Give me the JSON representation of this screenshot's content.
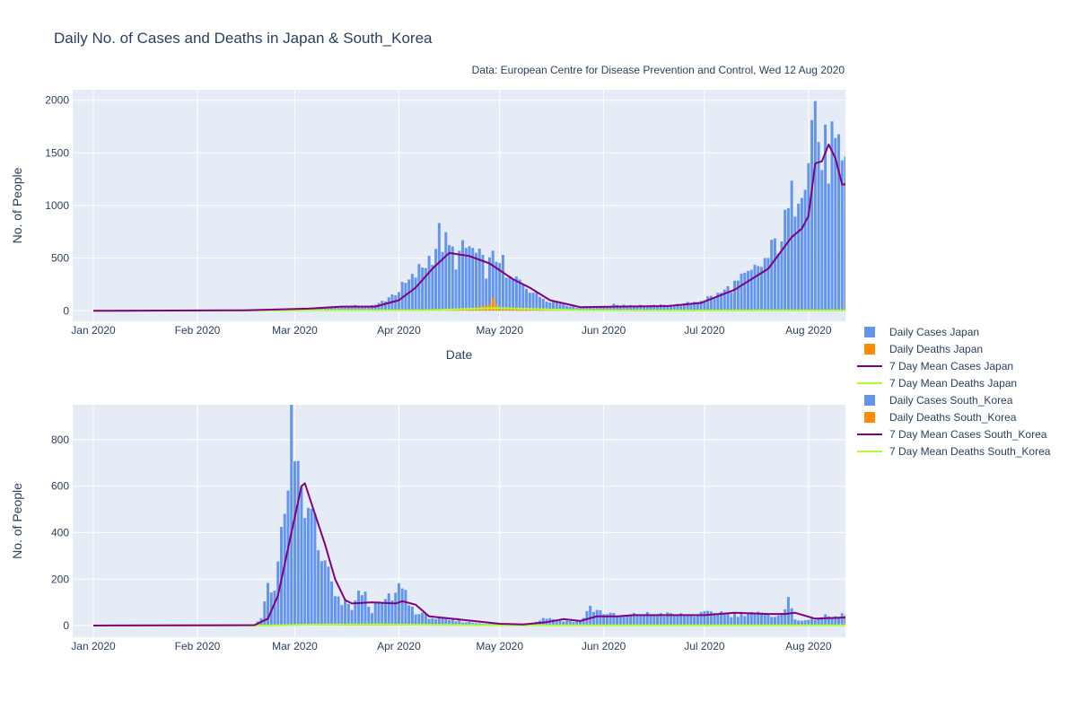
{
  "title": "Daily No. of Cases and Deaths in Japan & South_Korea",
  "source_note": "Data: European Centre for Disease Prevention and Control, Wed 12 Aug 2020",
  "colors": {
    "cases_bar": "#6495ED",
    "deaths_bar": "#FF8C00",
    "mean_cases_line": "#800080",
    "mean_deaths_line": "#ADFF2F",
    "plot_bg": "#E5ECF6",
    "grid": "#FFFFFF"
  },
  "legend": [
    {
      "label": "Daily Cases Japan",
      "kind": "bar",
      "color_key": "cases_bar"
    },
    {
      "label": "Daily Deaths Japan",
      "kind": "bar",
      "color_key": "deaths_bar"
    },
    {
      "label": "7 Day Mean Cases Japan",
      "kind": "line",
      "color_key": "mean_cases_line"
    },
    {
      "label": "7 Day Mean Deaths Japan",
      "kind": "line",
      "color_key": "mean_deaths_line"
    },
    {
      "label": "Daily Cases South_Korea",
      "kind": "bar",
      "color_key": "cases_bar"
    },
    {
      "label": "Daily Deaths South_Korea",
      "kind": "bar",
      "color_key": "deaths_bar"
    },
    {
      "label": "7 Day Mean Cases South_Korea",
      "kind": "line",
      "color_key": "mean_cases_line"
    },
    {
      "label": "7 Day Mean Deaths South_Korea",
      "kind": "line",
      "color_key": "mean_deaths_line"
    }
  ],
  "chart_data": [
    {
      "type": "bar",
      "country": "Japan",
      "xlabel": "Date",
      "ylabel": "No. of People",
      "x_range": [
        "2020-01-01",
        "2020-08-12"
      ],
      "ylim": [
        -100,
        2100
      ],
      "y_ticks": [
        0,
        500,
        1000,
        1500,
        2000
      ],
      "x_ticks": [
        {
          "date": "2020-01-01",
          "label": "Jan 2020"
        },
        {
          "date": "2020-02-01",
          "label": "Feb 2020"
        },
        {
          "date": "2020-03-01",
          "label": "Mar 2020"
        },
        {
          "date": "2020-04-01",
          "label": "Apr 2020"
        },
        {
          "date": "2020-05-01",
          "label": "May 2020"
        },
        {
          "date": "2020-06-01",
          "label": "Jun 2020"
        },
        {
          "date": "2020-07-01",
          "label": "Jul 2020"
        },
        {
          "date": "2020-08-01",
          "label": "Aug 2020"
        }
      ],
      "cases_keypoints": [
        [
          "2020-01-01",
          0
        ],
        [
          "2020-02-10",
          2
        ],
        [
          "2020-02-25",
          15
        ],
        [
          "2020-03-05",
          25
        ],
        [
          "2020-03-15",
          40
        ],
        [
          "2020-03-25",
          50
        ],
        [
          "2020-03-30",
          150
        ],
        [
          "2020-04-05",
          300
        ],
        [
          "2020-04-10",
          500
        ],
        [
          "2020-04-13",
          700
        ],
        [
          "2020-04-18",
          500
        ],
        [
          "2020-04-22",
          600
        ],
        [
          "2020-04-27",
          400
        ],
        [
          "2020-05-01",
          550
        ],
        [
          "2020-05-03",
          300
        ],
        [
          "2020-05-08",
          280
        ],
        [
          "2020-05-12",
          150
        ],
        [
          "2020-05-18",
          80
        ],
        [
          "2020-05-25",
          30
        ],
        [
          "2020-06-01",
          35
        ],
        [
          "2020-06-05",
          60
        ],
        [
          "2020-06-15",
          45
        ],
        [
          "2020-06-25",
          60
        ],
        [
          "2020-07-05",
          150
        ],
        [
          "2020-07-10",
          250
        ],
        [
          "2020-07-15",
          350
        ],
        [
          "2020-07-20",
          500
        ],
        [
          "2020-07-25",
          800
        ],
        [
          "2020-07-29",
          1250
        ],
        [
          "2020-08-01",
          1600
        ],
        [
          "2020-08-03",
          1950
        ],
        [
          "2020-08-05",
          1400
        ],
        [
          "2020-08-08",
          1550
        ],
        [
          "2020-08-11",
          1250
        ],
        [
          "2020-08-12",
          1250
        ]
      ],
      "mean_cases_keypoints": [
        [
          "2020-01-01",
          0
        ],
        [
          "2020-02-15",
          5
        ],
        [
          "2020-03-05",
          20
        ],
        [
          "2020-03-15",
          40
        ],
        [
          "2020-03-25",
          40
        ],
        [
          "2020-04-01",
          100
        ],
        [
          "2020-04-06",
          220
        ],
        [
          "2020-04-11",
          400
        ],
        [
          "2020-04-16",
          550
        ],
        [
          "2020-04-22",
          520
        ],
        [
          "2020-04-28",
          450
        ],
        [
          "2020-05-05",
          300
        ],
        [
          "2020-05-10",
          220
        ],
        [
          "2020-05-16",
          100
        ],
        [
          "2020-05-25",
          35
        ],
        [
          "2020-06-05",
          40
        ],
        [
          "2020-06-20",
          45
        ],
        [
          "2020-06-30",
          75
        ],
        [
          "2020-07-10",
          200
        ],
        [
          "2020-07-20",
          400
        ],
        [
          "2020-07-27",
          700
        ],
        [
          "2020-07-30",
          780
        ],
        [
          "2020-08-01",
          900
        ],
        [
          "2020-08-03",
          1400
        ],
        [
          "2020-08-05",
          1420
        ],
        [
          "2020-08-07",
          1580
        ],
        [
          "2020-08-09",
          1450
        ],
        [
          "2020-08-11",
          1200
        ],
        [
          "2020-08-12",
          1200
        ]
      ],
      "deaths_keypoints": [
        [
          "2020-01-01",
          0
        ],
        [
          "2020-04-01",
          5
        ],
        [
          "2020-04-25",
          25
        ],
        [
          "2020-04-29",
          90
        ],
        [
          "2020-05-01",
          20
        ],
        [
          "2020-05-10",
          20
        ],
        [
          "2020-05-20",
          10
        ],
        [
          "2020-06-10",
          3
        ],
        [
          "2020-07-15",
          2
        ],
        [
          "2020-08-12",
          4
        ]
      ],
      "mean_deaths_keypoints": [
        [
          "2020-01-01",
          0
        ],
        [
          "2020-04-10",
          6
        ],
        [
          "2020-04-30",
          25
        ],
        [
          "2020-05-10",
          18
        ],
        [
          "2020-05-25",
          6
        ],
        [
          "2020-06-15",
          2
        ],
        [
          "2020-08-12",
          3
        ]
      ]
    },
    {
      "type": "bar",
      "country": "South_Korea",
      "xlabel": "",
      "ylabel": "No. of People",
      "x_range": [
        "2020-01-01",
        "2020-08-12"
      ],
      "ylim": [
        -50,
        950
      ],
      "y_ticks": [
        0,
        200,
        400,
        600,
        800
      ],
      "x_ticks": [
        {
          "date": "2020-01-01",
          "label": "Jan 2020"
        },
        {
          "date": "2020-02-01",
          "label": "Feb 2020"
        },
        {
          "date": "2020-03-01",
          "label": "Mar 2020"
        },
        {
          "date": "2020-04-01",
          "label": "Apr 2020"
        },
        {
          "date": "2020-05-01",
          "label": "May 2020"
        },
        {
          "date": "2020-06-01",
          "label": "Jun 2020"
        },
        {
          "date": "2020-07-01",
          "label": "Jul 2020"
        },
        {
          "date": "2020-08-01",
          "label": "Aug 2020"
        }
      ],
      "cases_keypoints": [
        [
          "2020-01-01",
          0
        ],
        [
          "2020-02-18",
          2
        ],
        [
          "2020-02-20",
          30
        ],
        [
          "2020-02-22",
          190
        ],
        [
          "2020-02-24",
          160
        ],
        [
          "2020-02-27",
          450
        ],
        [
          "2020-02-29",
          910
        ],
        [
          "2020-03-01",
          590
        ],
        [
          "2020-03-03",
          600
        ],
        [
          "2020-03-05",
          440
        ],
        [
          "2020-03-07",
          480
        ],
        [
          "2020-03-09",
          250
        ],
        [
          "2020-03-11",
          240
        ],
        [
          "2020-03-13",
          110
        ],
        [
          "2020-03-18",
          80
        ],
        [
          "2020-03-21",
          150
        ],
        [
          "2020-03-24",
          70
        ],
        [
          "2020-03-27",
          100
        ],
        [
          "2020-03-31",
          125
        ],
        [
          "2020-04-02",
          195
        ],
        [
          "2020-04-04",
          90
        ],
        [
          "2020-04-07",
          50
        ],
        [
          "2020-04-12",
          30
        ],
        [
          "2020-04-18",
          20
        ],
        [
          "2020-04-25",
          10
        ],
        [
          "2020-05-01",
          8
        ],
        [
          "2020-05-10",
          10
        ],
        [
          "2020-05-15",
          35
        ],
        [
          "2020-05-20",
          20
        ],
        [
          "2020-05-25",
          20
        ],
        [
          "2020-05-28",
          75
        ],
        [
          "2020-06-05",
          40
        ],
        [
          "2020-06-15",
          50
        ],
        [
          "2020-06-25",
          45
        ],
        [
          "2020-07-01",
          50
        ],
        [
          "2020-07-05",
          60
        ],
        [
          "2020-07-10",
          45
        ],
        [
          "2020-07-15",
          60
        ],
        [
          "2020-07-20",
          40
        ],
        [
          "2020-07-25",
          60
        ],
        [
          "2020-07-26",
          115
        ],
        [
          "2020-07-28",
          30
        ],
        [
          "2020-08-01",
          20
        ],
        [
          "2020-08-05",
          40
        ],
        [
          "2020-08-10",
          35
        ],
        [
          "2020-08-12",
          55
        ]
      ],
      "mean_cases_keypoints": [
        [
          "2020-01-01",
          0
        ],
        [
          "2020-02-18",
          2
        ],
        [
          "2020-02-22",
          30
        ],
        [
          "2020-02-25",
          130
        ],
        [
          "2020-02-29",
          400
        ],
        [
          "2020-03-03",
          600
        ],
        [
          "2020-03-04",
          612
        ],
        [
          "2020-03-07",
          480
        ],
        [
          "2020-03-10",
          350
        ],
        [
          "2020-03-13",
          200
        ],
        [
          "2020-03-16",
          110
        ],
        [
          "2020-03-18",
          95
        ],
        [
          "2020-03-24",
          100
        ],
        [
          "2020-03-31",
          95
        ],
        [
          "2020-04-02",
          105
        ],
        [
          "2020-04-06",
          90
        ],
        [
          "2020-04-10",
          40
        ],
        [
          "2020-04-20",
          25
        ],
        [
          "2020-05-01",
          8
        ],
        [
          "2020-05-08",
          5
        ],
        [
          "2020-05-15",
          15
        ],
        [
          "2020-05-20",
          28
        ],
        [
          "2020-05-25",
          20
        ],
        [
          "2020-05-30",
          40
        ],
        [
          "2020-06-05",
          40
        ],
        [
          "2020-06-10",
          45
        ],
        [
          "2020-06-20",
          45
        ],
        [
          "2020-07-01",
          45
        ],
        [
          "2020-07-10",
          55
        ],
        [
          "2020-07-20",
          50
        ],
        [
          "2020-07-25",
          50
        ],
        [
          "2020-07-28",
          55
        ],
        [
          "2020-08-03",
          30
        ],
        [
          "2020-08-12",
          35
        ]
      ],
      "deaths_keypoints": [
        [
          "2020-01-01",
          0
        ],
        [
          "2020-02-20",
          0
        ],
        [
          "2020-03-01",
          4
        ],
        [
          "2020-03-25",
          6
        ],
        [
          "2020-04-10",
          3
        ],
        [
          "2020-05-01",
          1
        ],
        [
          "2020-08-12",
          1
        ]
      ],
      "mean_deaths_keypoints": [
        [
          "2020-01-01",
          0
        ],
        [
          "2020-02-20",
          0
        ],
        [
          "2020-03-05",
          4
        ],
        [
          "2020-03-25",
          5
        ],
        [
          "2020-04-15",
          3
        ],
        [
          "2020-05-10",
          1
        ],
        [
          "2020-08-12",
          1
        ]
      ]
    }
  ]
}
